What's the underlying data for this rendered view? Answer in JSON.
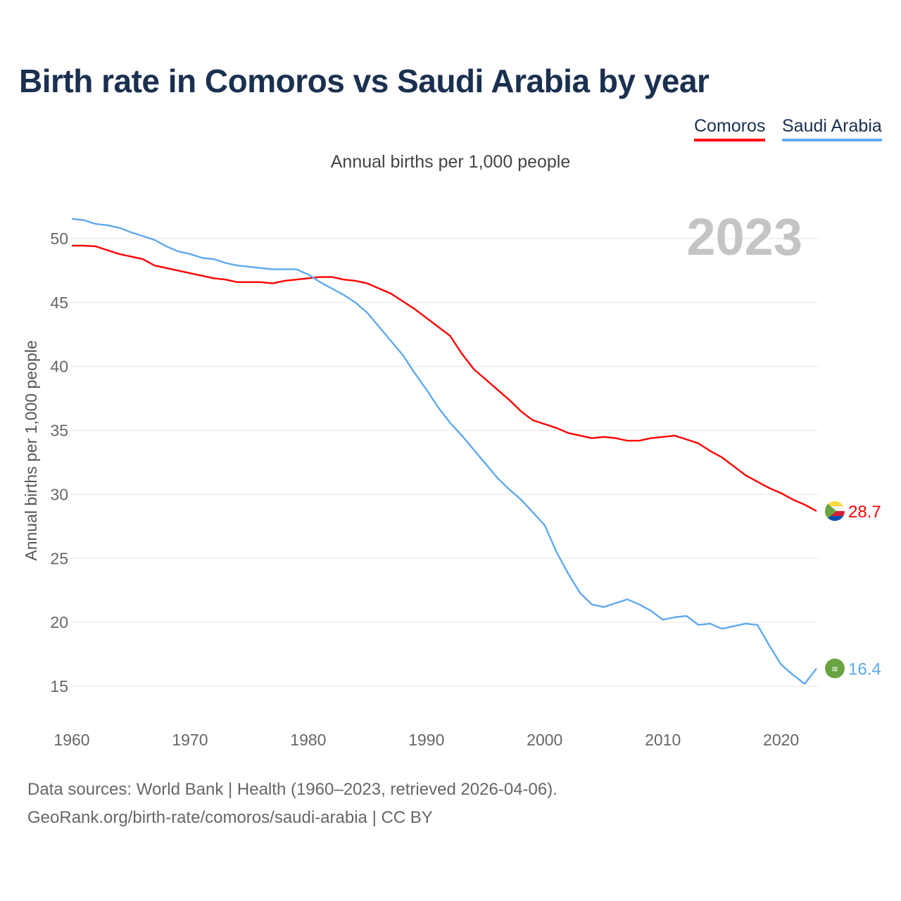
{
  "chart_data": {
    "type": "line",
    "title": "Birth rate in Comoros vs Saudi Arabia by year",
    "subtitle": "Annual births per 1,000 people",
    "ylabel": "Annual births per 1,000 people",
    "xlabel": "",
    "year_label": "2023",
    "xlim": [
      1960,
      2023
    ],
    "ylim": [
      12.5,
      52
    ],
    "x_ticks": [
      "1960",
      "1970",
      "1980",
      "1990",
      "2000",
      "2010",
      "2020"
    ],
    "y_ticks": [
      "15",
      "20",
      "25",
      "30",
      "35",
      "40",
      "45",
      "50"
    ],
    "grid": true,
    "legend_position": "top-right",
    "x": [
      1960,
      1961,
      1962,
      1963,
      1964,
      1965,
      1966,
      1967,
      1968,
      1969,
      1970,
      1971,
      1972,
      1973,
      1974,
      1975,
      1976,
      1977,
      1978,
      1979,
      1980,
      1981,
      1982,
      1983,
      1984,
      1985,
      1986,
      1987,
      1988,
      1989,
      1990,
      1991,
      1992,
      1993,
      1994,
      1995,
      1996,
      1997,
      1998,
      1999,
      2000,
      2001,
      2002,
      2003,
      2004,
      2005,
      2006,
      2007,
      2008,
      2009,
      2010,
      2011,
      2012,
      2013,
      2014,
      2015,
      2016,
      2017,
      2018,
      2019,
      2020,
      2021,
      2022,
      2023
    ],
    "series": [
      {
        "name": "Comoros",
        "color": "#ff0000",
        "end_label": "28.7",
        "values": [
          49.45,
          49.45,
          49.4,
          49.1,
          48.8,
          48.6,
          48.4,
          47.9,
          47.7,
          47.5,
          47.3,
          47.1,
          46.9,
          46.8,
          46.6,
          46.6,
          46.6,
          46.5,
          46.7,
          46.8,
          46.9,
          47.0,
          47.0,
          46.8,
          46.7,
          46.5,
          46.1,
          45.7,
          45.1,
          44.5,
          43.8,
          43.1,
          42.4,
          41.0,
          39.8,
          39.0,
          38.2,
          37.4,
          36.5,
          35.8,
          35.5,
          35.2,
          34.8,
          34.6,
          34.4,
          34.5,
          34.4,
          34.2,
          34.2,
          34.4,
          34.5,
          34.6,
          34.3,
          34.0,
          33.4,
          32.9,
          32.2,
          31.5,
          31.0,
          30.5,
          30.1,
          29.6,
          29.2,
          28.7
        ]
      },
      {
        "name": "Saudi Arabia",
        "color": "#5ea9ee",
        "end_label": "16.4",
        "values": [
          51.55,
          51.45,
          51.15,
          51.05,
          50.85,
          50.5,
          50.2,
          49.9,
          49.4,
          49.0,
          48.8,
          48.5,
          48.4,
          48.1,
          47.9,
          47.8,
          47.7,
          47.6,
          47.6,
          47.6,
          47.2,
          46.6,
          46.1,
          45.6,
          45.0,
          44.2,
          43.1,
          42.0,
          40.9,
          39.5,
          38.2,
          36.8,
          35.6,
          34.6,
          33.5,
          32.4,
          31.3,
          30.4,
          29.6,
          28.6,
          27.6,
          25.5,
          23.8,
          22.3,
          21.4,
          21.2,
          21.5,
          21.8,
          21.4,
          20.9,
          20.2,
          20.4,
          20.5,
          19.8,
          19.9,
          19.5,
          19.7,
          19.9,
          19.8,
          18.2,
          16.7,
          15.9,
          15.2,
          16.4
        ]
      }
    ]
  },
  "footer": {
    "line1": "Data sources: World Bank | Health (1960–2023, retrieved 2026-04-06).",
    "line2": "GeoRank.org/birth-rate/comoros/saudi-arabia | CC BY"
  }
}
